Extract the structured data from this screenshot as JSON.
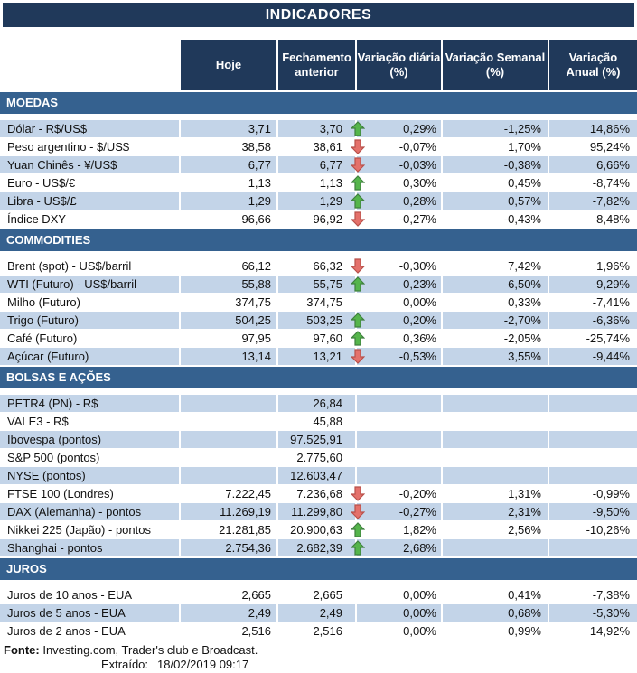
{
  "title": "INDICADORES",
  "columns": [
    {
      "id": "hoje",
      "lines": [
        "Hoje"
      ]
    },
    {
      "id": "fechamento",
      "lines": [
        "Fechamento",
        "anterior"
      ]
    },
    {
      "id": "diaria",
      "lines": [
        "Variação diária",
        "(%)"
      ]
    },
    {
      "id": "semanal",
      "lines": [
        "Variação Semanal",
        "(%)"
      ]
    },
    {
      "id": "anual",
      "lines": [
        "Variação",
        "Anual (%)"
      ]
    }
  ],
  "colors": {
    "header_bg": "#20395A",
    "section_bg": "#35618F",
    "row_shaded_bg": "#C3D4E8",
    "arrow_up_fill": "#55B54B",
    "arrow_up_stroke": "#3E7F3E",
    "arrow_down_fill": "#E4716B",
    "arrow_down_stroke": "#B8504A"
  },
  "sections": [
    {
      "name": "MOEDAS",
      "shaded_first": true,
      "rows": [
        {
          "label": "Dólar - R$/US$",
          "hoje": "3,71",
          "fechamento": "3,70",
          "arrow": "up",
          "diaria": "0,29%",
          "semanal": "-1,25%",
          "anual": "14,86%"
        },
        {
          "label": "Peso argentino - $/US$",
          "hoje": "38,58",
          "fechamento": "38,61",
          "arrow": "down",
          "diaria": "-0,07%",
          "semanal": "1,70%",
          "anual": "95,24%"
        },
        {
          "label": "Yuan Chinês - ¥/US$",
          "hoje": "6,77",
          "fechamento": "6,77",
          "arrow": "down",
          "diaria": "-0,03%",
          "semanal": "-0,38%",
          "anual": "6,66%"
        },
        {
          "label": "Euro - US$/€",
          "hoje": "1,13",
          "fechamento": "1,13",
          "arrow": "up",
          "diaria": "0,30%",
          "semanal": "0,45%",
          "anual": "-8,74%"
        },
        {
          "label": "Libra - US$/£",
          "hoje": "1,29",
          "fechamento": "1,29",
          "arrow": "up",
          "diaria": "0,28%",
          "semanal": "0,57%",
          "anual": "-7,82%"
        },
        {
          "label": "Índice DXY",
          "hoje": "96,66",
          "fechamento": "96,92",
          "arrow": "down",
          "diaria": "-0,27%",
          "semanal": "-0,43%",
          "anual": "8,48%"
        }
      ]
    },
    {
      "name": "COMMODITIES",
      "shaded_first": false,
      "rows": [
        {
          "label": "Brent (spot) - US$/barril",
          "hoje": "66,12",
          "fechamento": "66,32",
          "arrow": "down",
          "diaria": "-0,30%",
          "semanal": "7,42%",
          "anual": "1,96%"
        },
        {
          "label": "WTI (Futuro) - US$/barril",
          "hoje": "55,88",
          "fechamento": "55,75",
          "arrow": "up",
          "diaria": "0,23%",
          "semanal": "6,50%",
          "anual": "-9,29%"
        },
        {
          "label": "Milho (Futuro)",
          "hoje": "374,75",
          "fechamento": "374,75",
          "arrow": "",
          "diaria": "0,00%",
          "semanal": "0,33%",
          "anual": "-7,41%"
        },
        {
          "label": "Trigo (Futuro)",
          "hoje": "504,25",
          "fechamento": "503,25",
          "arrow": "up",
          "diaria": "0,20%",
          "semanal": "-2,70%",
          "anual": "-6,36%"
        },
        {
          "label": "Café (Futuro)",
          "hoje": "97,95",
          "fechamento": "97,60",
          "arrow": "up",
          "diaria": "0,36%",
          "semanal": "-2,05%",
          "anual": "-25,74%"
        },
        {
          "label": "Açúcar (Futuro)",
          "hoje": "13,14",
          "fechamento": "13,21",
          "arrow": "down",
          "diaria": "-0,53%",
          "semanal": "3,55%",
          "anual": "-9,44%"
        }
      ]
    },
    {
      "name": "BOLSAS E AÇÕES",
      "shaded_first": true,
      "rows": [
        {
          "label": "PETR4 (PN) - R$",
          "hoje": "",
          "fechamento": "26,84",
          "arrow": "",
          "diaria": "",
          "semanal": "",
          "anual": ""
        },
        {
          "label": "VALE3 - R$",
          "hoje": "",
          "fechamento": "45,88",
          "arrow": "",
          "diaria": "",
          "semanal": "",
          "anual": ""
        },
        {
          "label": "Ibovespa (pontos)",
          "hoje": "",
          "fechamento": "97.525,91",
          "arrow": "",
          "diaria": "",
          "semanal": "",
          "anual": ""
        },
        {
          "label": "S&P 500 (pontos)",
          "hoje": "",
          "fechamento": "2.775,60",
          "arrow": "",
          "diaria": "",
          "semanal": "",
          "anual": ""
        },
        {
          "label": "NYSE (pontos)",
          "hoje": "",
          "fechamento": "12.603,47",
          "arrow": "",
          "diaria": "",
          "semanal": "",
          "anual": ""
        },
        {
          "label": "FTSE 100 (Londres)",
          "hoje": "7.222,45",
          "fechamento": "7.236,68",
          "arrow": "down",
          "diaria": "-0,20%",
          "semanal": "1,31%",
          "anual": "-0,99%"
        },
        {
          "label": "DAX (Alemanha) - pontos",
          "hoje": "11.269,19",
          "fechamento": "11.299,80",
          "arrow": "down",
          "diaria": "-0,27%",
          "semanal": "2,31%",
          "anual": "-9,50%"
        },
        {
          "label": "Nikkei 225 (Japão) - pontos",
          "hoje": "21.281,85",
          "fechamento": "20.900,63",
          "arrow": "up",
          "diaria": "1,82%",
          "semanal": "2,56%",
          "anual": "-10,26%"
        },
        {
          "label": "Shanghai - pontos",
          "hoje": "2.754,36",
          "fechamento": "2.682,39",
          "arrow": "up",
          "diaria": "2,68%",
          "semanal": "",
          "anual": ""
        }
      ]
    },
    {
      "name": "JUROS",
      "shaded_first": false,
      "rows": [
        {
          "label": "Juros de 10 anos - EUA",
          "hoje": "2,665",
          "fechamento": "2,665",
          "arrow": "",
          "diaria": "0,00%",
          "semanal": "0,41%",
          "anual": "-7,38%"
        },
        {
          "label": "Juros de 5 anos - EUA",
          "hoje": "2,49",
          "fechamento": "2,49",
          "arrow": "",
          "diaria": "0,00%",
          "semanal": "0,68%",
          "anual": "-5,30%"
        },
        {
          "label": "Juros de 2 anos - EUA",
          "hoje": "2,516",
          "fechamento": "2,516",
          "arrow": "",
          "diaria": "0,00%",
          "semanal": "0,99%",
          "anual": "14,92%"
        }
      ]
    }
  ],
  "footer": {
    "source_label": "Fonte:",
    "source_text": "Investing.com, Trader's club e Broadcast.",
    "extracted_label": "Extraído:",
    "extracted_value": "18/02/2019 09:17"
  }
}
